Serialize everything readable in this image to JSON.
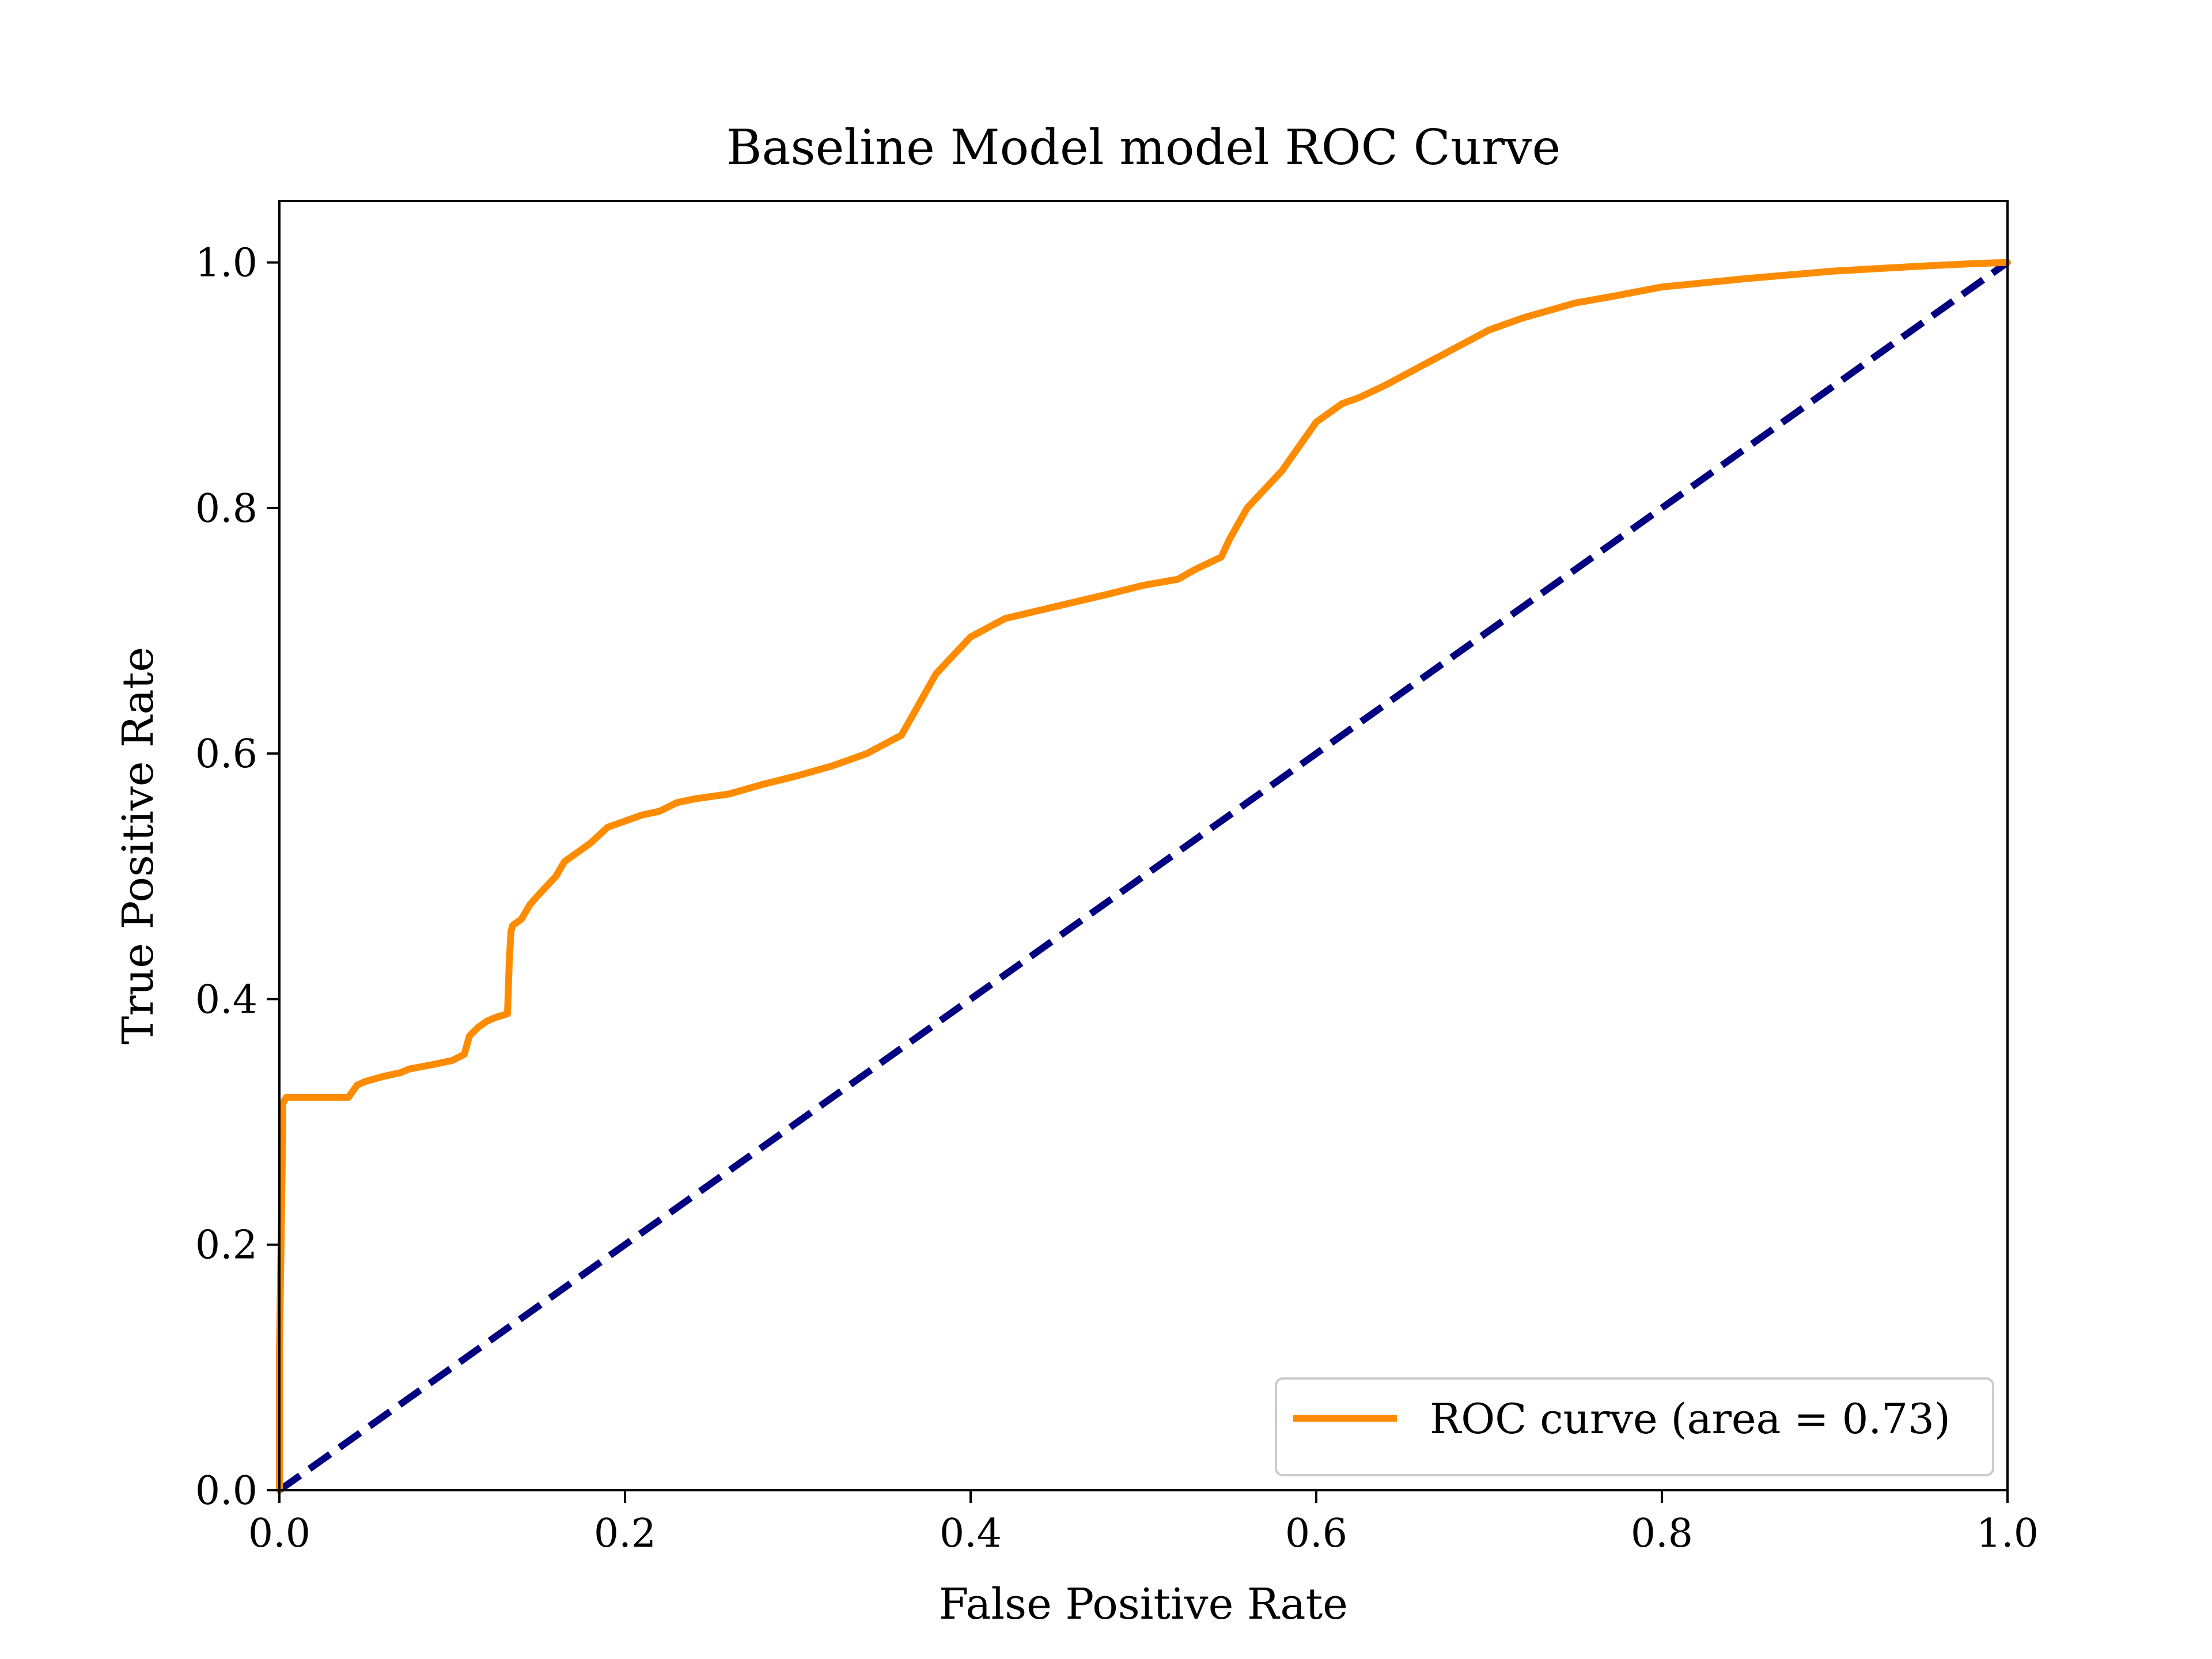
{
  "chart_data": {
    "type": "line",
    "title": "Baseline Model model ROC Curve",
    "xlabel": "False Positive Rate",
    "ylabel": "True Positive Rate",
    "xlim": [
      0.0,
      1.0
    ],
    "ylim": [
      0.0,
      1.05
    ],
    "xticks": [
      0.0,
      0.2,
      0.4,
      0.6,
      0.8,
      1.0
    ],
    "yticks": [
      0.0,
      0.2,
      0.4,
      0.6,
      0.8,
      1.0
    ],
    "xtick_labels": [
      "0.0",
      "0.2",
      "0.4",
      "0.6",
      "0.8",
      "1.0"
    ],
    "ytick_labels": [
      "0.0",
      "0.2",
      "0.4",
      "0.6",
      "0.8",
      "1.0"
    ],
    "grid": false,
    "legend_position": "lower-right",
    "series": [
      {
        "name": "ROC curve (area = 0.73)",
        "color": "#ff8c00",
        "style": "solid",
        "x": [
          0.0,
          0.0,
          0.002,
          0.002,
          0.004,
          0.006,
          0.02,
          0.04,
          0.045,
          0.05,
          0.06,
          0.07,
          0.075,
          0.09,
          0.1,
          0.107,
          0.11,
          0.115,
          0.12,
          0.125,
          0.132,
          0.133,
          0.134,
          0.135,
          0.14,
          0.145,
          0.15,
          0.16,
          0.165,
          0.17,
          0.18,
          0.19,
          0.2,
          0.21,
          0.22,
          0.23,
          0.24,
          0.25,
          0.26,
          0.28,
          0.3,
          0.32,
          0.34,
          0.36,
          0.37,
          0.38,
          0.39,
          0.4,
          0.42,
          0.45,
          0.48,
          0.5,
          0.52,
          0.53,
          0.545,
          0.55,
          0.56,
          0.57,
          0.58,
          0.6,
          0.615,
          0.625,
          0.64,
          0.66,
          0.68,
          0.7,
          0.72,
          0.75,
          0.77,
          0.8,
          0.85,
          0.9,
          0.95,
          0.98,
          1.0
        ],
        "y": [
          0.0,
          0.11,
          0.3,
          0.315,
          0.32,
          0.32,
          0.32,
          0.32,
          0.33,
          0.333,
          0.337,
          0.34,
          0.343,
          0.347,
          0.35,
          0.355,
          0.37,
          0.377,
          0.382,
          0.385,
          0.388,
          0.43,
          0.455,
          0.46,
          0.465,
          0.477,
          0.485,
          0.5,
          0.512,
          0.517,
          0.527,
          0.54,
          0.545,
          0.55,
          0.553,
          0.56,
          0.563,
          0.565,
          0.567,
          0.575,
          0.582,
          0.59,
          0.6,
          0.615,
          0.64,
          0.665,
          0.68,
          0.695,
          0.71,
          0.72,
          0.73,
          0.737,
          0.742,
          0.75,
          0.76,
          0.775,
          0.8,
          0.815,
          0.83,
          0.87,
          0.885,
          0.89,
          0.9,
          0.915,
          0.93,
          0.945,
          0.955,
          0.967,
          0.972,
          0.98,
          0.987,
          0.993,
          0.997,
          0.999,
          1.0
        ]
      },
      {
        "color": "#000080",
        "style": "dashed",
        "x": [
          0.0,
          1.0
        ],
        "y": [
          0.0,
          1.0
        ]
      }
    ],
    "legend": {
      "entries": [
        "ROC curve (area = 0.73)"
      ]
    }
  }
}
